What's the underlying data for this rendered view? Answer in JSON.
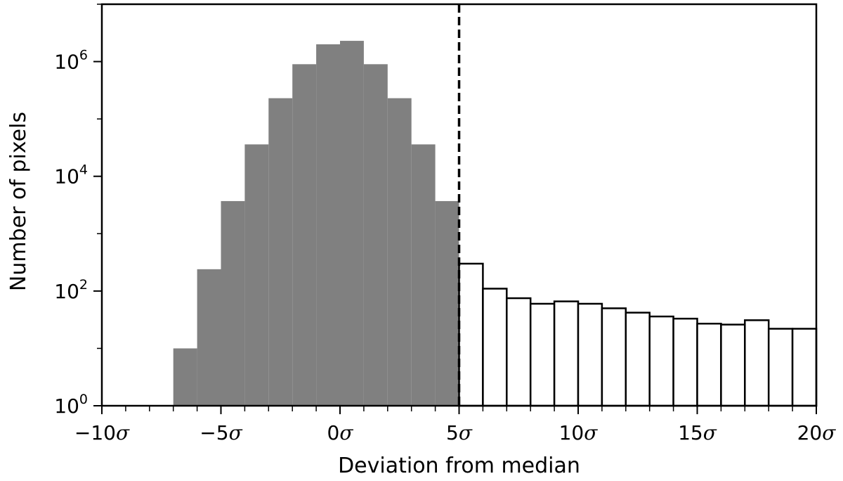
{
  "chart_data": {
    "type": "bar",
    "title": "",
    "xlabel": "Deviation from median",
    "ylabel": "Number of pixels",
    "xlim": [
      -10,
      20
    ],
    "ylim": [
      1,
      10000000
    ],
    "y_scale": "log",
    "grid": false,
    "x_ticks": [
      -10,
      -5,
      0,
      5,
      10,
      15,
      20
    ],
    "x_tick_labels": [
      "−10σ",
      "−5σ",
      "0σ",
      "5σ",
      "10σ",
      "15σ",
      "20σ"
    ],
    "x_minor_tick_step": 1,
    "y_ticks": [
      1,
      100,
      10000,
      1000000
    ],
    "y_tick_labels": [
      {
        "base": "10",
        "exp": "0"
      },
      {
        "base": "10",
        "exp": "2"
      },
      {
        "base": "10",
        "exp": "4"
      },
      {
        "base": "10",
        "exp": "6"
      }
    ],
    "threshold": {
      "x": 5,
      "style": "dashed",
      "color": "#000000"
    },
    "bin_width": 1,
    "series": [
      {
        "fill": "#808080",
        "edge": "none",
        "bins": [
          {
            "x0": -7,
            "value": 10
          },
          {
            "x0": -6,
            "value": 240
          },
          {
            "x0": -5,
            "value": 3700
          },
          {
            "x0": -4,
            "value": 36000
          },
          {
            "x0": -3,
            "value": 230000
          },
          {
            "x0": -2,
            "value": 900000
          },
          {
            "x0": -1,
            "value": 2000000
          },
          {
            "x0": 0,
            "value": 2300000
          },
          {
            "x0": 1,
            "value": 900000
          },
          {
            "x0": 2,
            "value": 230000
          },
          {
            "x0": 3,
            "value": 36000
          },
          {
            "x0": 4,
            "value": 3700
          }
        ]
      },
      {
        "fill": "#ffffff",
        "edge": "#000000",
        "bins": [
          {
            "x0": 5,
            "value": 300
          },
          {
            "x0": 6,
            "value": 110
          },
          {
            "x0": 7,
            "value": 75
          },
          {
            "x0": 8,
            "value": 60
          },
          {
            "x0": 9,
            "value": 66
          },
          {
            "x0": 10,
            "value": 60
          },
          {
            "x0": 11,
            "value": 50
          },
          {
            "x0": 12,
            "value": 42
          },
          {
            "x0": 13,
            "value": 36
          },
          {
            "x0": 14,
            "value": 33
          },
          {
            "x0": 15,
            "value": 27
          },
          {
            "x0": 16,
            "value": 26
          },
          {
            "x0": 17,
            "value": 31
          },
          {
            "x0": 18,
            "value": 22
          },
          {
            "x0": 19,
            "value": 22
          }
        ]
      }
    ]
  }
}
